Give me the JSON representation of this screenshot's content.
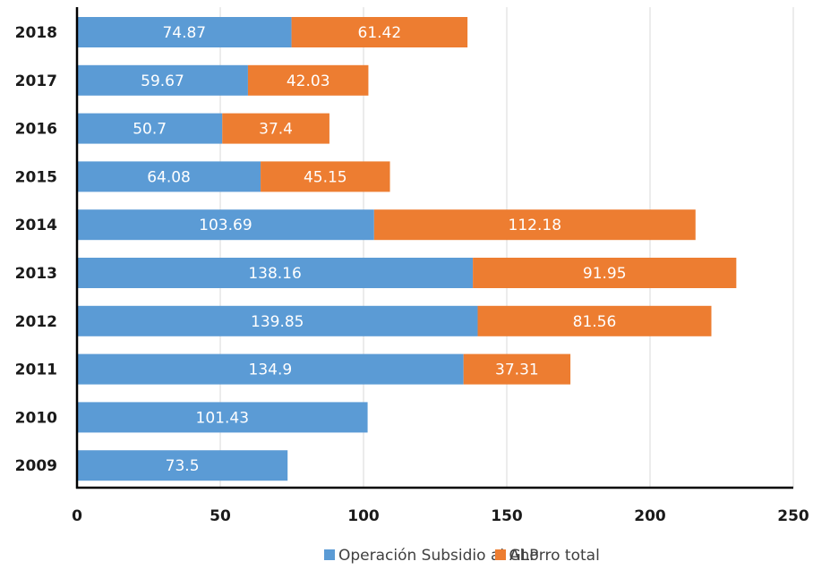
{
  "chart_data": {
    "type": "bar",
    "orientation": "horizontal",
    "stacked": true,
    "categories": [
      "2009",
      "2010",
      "2011",
      "2012",
      "2013",
      "2014",
      "2015",
      "2016",
      "2017",
      "2018"
    ],
    "series": [
      {
        "name": "Operación Subsidio al GLP",
        "color": "#5b9bd5",
        "values": [
          73.5,
          101.43,
          134.9,
          139.85,
          138.16,
          103.69,
          64.08,
          50.7,
          59.67,
          74.87
        ]
      },
      {
        "name": "Ahorro total",
        "color": "#ed7d31",
        "values": [
          null,
          null,
          37.31,
          81.56,
          91.95,
          112.18,
          45.15,
          37.4,
          42.03,
          61.42
        ]
      }
    ],
    "xlim": [
      0,
      250
    ],
    "xticks": [
      "0",
      "50",
      "100",
      "150",
      "200",
      "250"
    ],
    "grid": true,
    "legend": "bottom",
    "title": "",
    "xlabel": "",
    "ylabel": ""
  }
}
